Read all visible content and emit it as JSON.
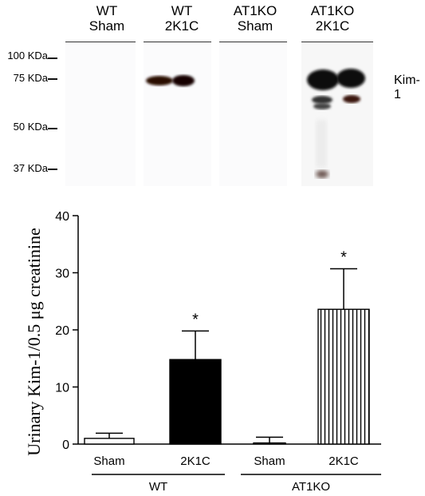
{
  "blot": {
    "lanes": [
      {
        "line1": "WT",
        "line2": "Sham"
      },
      {
        "line1": "WT",
        "line2": "2K1C"
      },
      {
        "line1": "AT1KO",
        "line2": "Sham"
      },
      {
        "line1": "AT1KO",
        "line2": "2K1C"
      }
    ],
    "markers": [
      "100 KDa",
      "75 KDa",
      "50 KDa",
      "37 KDa"
    ],
    "protein_label": "Kim-1"
  },
  "chart_data": {
    "type": "bar",
    "ylabel": "Urinary Kim-1/0.5 μg creatinine",
    "ylim": [
      0,
      40
    ],
    "yticks": [
      0,
      10,
      20,
      30,
      40
    ],
    "categories": [
      "Sham",
      "2K1C",
      "Sham",
      "2K1C"
    ],
    "groups": [
      {
        "label": "WT",
        "categories": [
          "Sham",
          "2K1C"
        ]
      },
      {
        "label": "AT1KO",
        "categories": [
          "Sham",
          "2K1C"
        ]
      }
    ],
    "values": [
      1.0,
      14.8,
      0.2,
      23.6
    ],
    "errors": [
      0.9,
      5.0,
      1.0,
      7.1
    ],
    "annotations": [
      "",
      "*",
      "",
      "*"
    ],
    "fills": [
      "white",
      "black",
      "white",
      "vertical-stripes"
    ]
  }
}
